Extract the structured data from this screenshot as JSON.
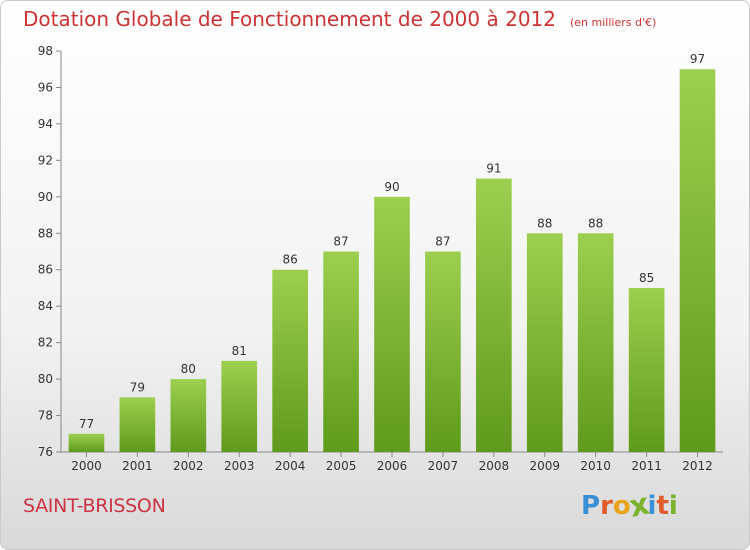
{
  "chart_data": {
    "type": "bar",
    "title": "Dotation Globale de Fonctionnement de 2000 à 2012",
    "subtitle": "(en milliers d'€)",
    "categories": [
      "2000",
      "2001",
      "2002",
      "2003",
      "2004",
      "2005",
      "2006",
      "2007",
      "2008",
      "2009",
      "2010",
      "2011",
      "2012"
    ],
    "values": [
      77,
      79,
      80,
      81,
      86,
      87,
      90,
      87,
      91,
      88,
      88,
      85,
      97
    ],
    "ylim": [
      76,
      98
    ],
    "yticks": [
      76,
      78,
      80,
      82,
      84,
      86,
      88,
      90,
      92,
      94,
      96,
      98
    ],
    "bar_color": "#7ab32e",
    "bar_color_light": "#9ccf4f",
    "grid": false
  },
  "footer": {
    "city": "SAINT-BRISSON",
    "logo_text": "Proxiti"
  },
  "colors": {
    "title": "#cc3333",
    "city": "#cc3344",
    "logo": [
      "#3a8fd6",
      "#e05a2a",
      "#e8a317",
      "#7ab32e",
      "#3a8fd6",
      "#e05a2a",
      "#7ab32e"
    ]
  }
}
